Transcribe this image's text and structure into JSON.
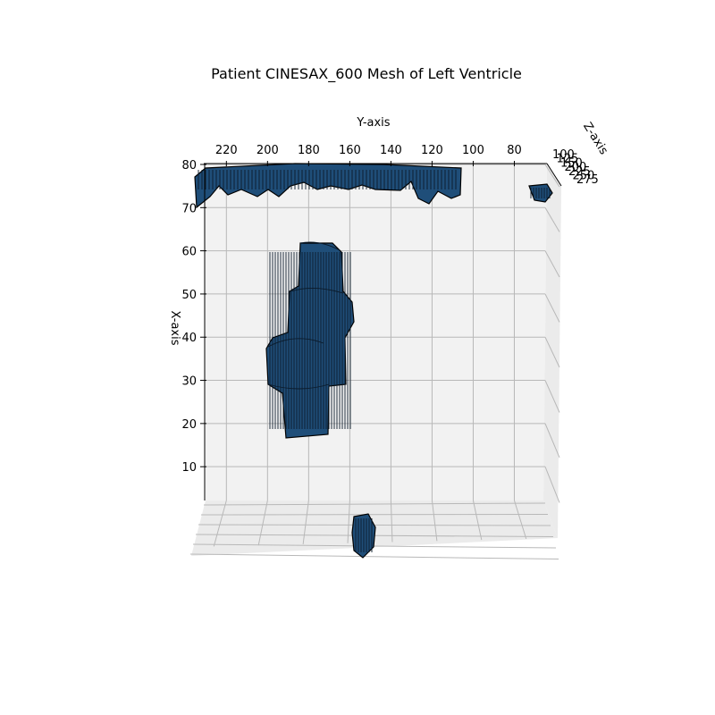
{
  "chart_data": {
    "type": "surface3d",
    "title": "Patient CINESAX_600 Mesh of Left Ventricle",
    "axes": {
      "x": {
        "label": "X-axis",
        "ticks": [
          10,
          20,
          30,
          40,
          50,
          60,
          70,
          80
        ],
        "range": [
          3,
          80
        ]
      },
      "y": {
        "label": "Y-axis",
        "ticks": [
          220,
          200,
          180,
          160,
          140,
          120,
          100,
          80
        ],
        "range": [
          231,
          65
        ],
        "reversed": true
      },
      "z": {
        "label": "Z-axis",
        "ticks": [
          100,
          125,
          150,
          200,
          225,
          250,
          275
        ]
      }
    },
    "grid": true,
    "mesh_color": "#1f4e79",
    "edge_color": "#000000",
    "components": [
      {
        "name": "top-rim",
        "x_range": [
          71,
          80
        ],
        "y_range": [
          225,
          103
        ]
      },
      {
        "name": "top-right-fragment",
        "x_range": [
          71,
          75
        ],
        "y_range": [
          73,
          63
        ]
      },
      {
        "name": "central-column",
        "x_range": [
          20,
          63
        ],
        "y_range": [
          195,
          158
        ]
      },
      {
        "name": "bottom-fragment",
        "x_range": [
          -4,
          2
        ],
        "y_range": [
          160,
          150
        ]
      }
    ]
  }
}
